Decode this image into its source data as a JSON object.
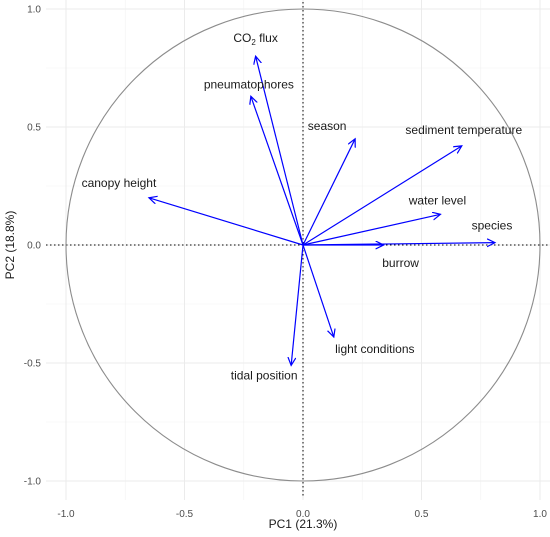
{
  "chart_data": {
    "type": "scatter",
    "subtype": "pca-correlation-circle",
    "title": "",
    "xlabel": "PC1 (21.3%)",
    "ylabel": "PC2 (18.8%)",
    "xlim": [
      -1.0,
      1.0
    ],
    "ylim": [
      -1.0,
      1.0
    ],
    "xticks": [
      "-1.0",
      "-0.5",
      "0.0",
      "0.5",
      "1.0"
    ],
    "yticks": [
      "-1.0",
      "-0.5",
      "0.0",
      "0.5",
      "1.0"
    ],
    "grid": true,
    "unit_circle": true,
    "reference_lines": "dotted lines at x=0 and y=0",
    "arrow_color": "#0000ff",
    "circle_color": "#8c8c8c",
    "vectors": [
      {
        "name": "CO₂ flux",
        "base": "CO",
        "sub": "2",
        "after": " flux",
        "x": -0.2,
        "y": 0.8
      },
      {
        "name": "pneumatophores",
        "x": -0.22,
        "y": 0.63
      },
      {
        "name": "season",
        "x": 0.22,
        "y": 0.45
      },
      {
        "name": "sediment temperature",
        "x": 0.67,
        "y": 0.42
      },
      {
        "name": "canopy height",
        "x": -0.65,
        "y": 0.2
      },
      {
        "name": "water level",
        "x": 0.58,
        "y": 0.13
      },
      {
        "name": "species",
        "x": 0.81,
        "y": 0.01
      },
      {
        "name": "burrow",
        "x": 0.34,
        "y": 0.0
      },
      {
        "name": "light conditions",
        "x": 0.13,
        "y": -0.39
      },
      {
        "name": "tidal position",
        "x": -0.05,
        "y": -0.51
      }
    ]
  }
}
